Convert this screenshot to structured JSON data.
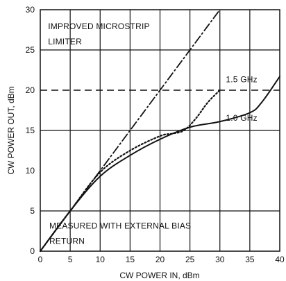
{
  "chart_data": {
    "type": "line",
    "title": "",
    "xlabel": "CW POWER IN, dBm",
    "ylabel": "CW POWER OUT, dBm",
    "xlim": [
      0,
      40
    ],
    "ylim": [
      0,
      30
    ],
    "x_ticks": [
      "0",
      "5",
      "10",
      "15",
      "20",
      "25",
      "30",
      "35",
      "40"
    ],
    "y_ticks": [
      "0",
      "5",
      "10",
      "15",
      "20",
      "25",
      "30"
    ],
    "grid": "vertical lines at every x tick; horizontal lines at y = 5, 15, 25",
    "annotations": [
      {
        "text": "IMPROVED MICROSTRIP",
        "x": 1.3,
        "y": 27.6
      },
      {
        "text": "LIMITER",
        "x": 1.3,
        "y": 25.7
      },
      {
        "text": "1.5 GHz",
        "x": 31.0,
        "y": 21.0
      },
      {
        "text": "1.0 GHz",
        "x": 31.0,
        "y": 16.2
      },
      {
        "text": "MEASURED WITH EXTERNAL BIAS",
        "x": 1.5,
        "y": 2.8
      },
      {
        "text": "RETURN",
        "x": 1.5,
        "y": 0.9
      }
    ],
    "series": [
      {
        "name": "",
        "style": "dash-dot",
        "points": [
          [
            0,
            0
          ],
          [
            30,
            30
          ]
        ]
      },
      {
        "name": "1.5 GHz",
        "style": "dotted",
        "points": [
          [
            0,
            0
          ],
          [
            5,
            5
          ],
          [
            10,
            9.8
          ],
          [
            15,
            12.5
          ],
          [
            20,
            14.3
          ],
          [
            22,
            14.6
          ],
          [
            24,
            15.0
          ],
          [
            26,
            16.5
          ],
          [
            28,
            18.5
          ],
          [
            30,
            20.0
          ]
        ]
      },
      {
        "name": "1.0 GHz",
        "style": "solid",
        "points": [
          [
            0,
            0
          ],
          [
            5,
            5
          ],
          [
            10,
            9.3
          ],
          [
            15,
            11.9
          ],
          [
            20,
            13.9
          ],
          [
            25,
            15.4
          ],
          [
            30,
            16.1
          ],
          [
            35,
            17.2
          ],
          [
            37,
            18.5
          ],
          [
            40,
            21.7
          ]
        ]
      }
    ],
    "reference_line": {
      "style": "dashed",
      "y": 20,
      "from_x": 0,
      "to_x": 40
    }
  }
}
